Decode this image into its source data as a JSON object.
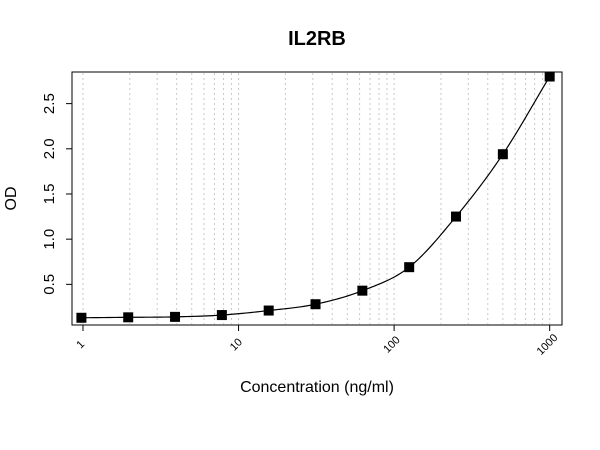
{
  "chart_data": {
    "type": "scatter",
    "title": "IL2RB",
    "xlabel": "Concentration (ng/ml)",
    "ylabel": "OD",
    "x_scale": "log",
    "xlim": [
      0.85,
      1200
    ],
    "ylim": [
      0.05,
      2.85
    ],
    "x_tick_labels": [
      {
        "value": 1,
        "label": "1"
      },
      {
        "value": 10,
        "label": "10"
      },
      {
        "value": 100,
        "label": "100"
      },
      {
        "value": 1000,
        "label": "1000"
      }
    ],
    "y_tick_labels": [
      {
        "value": 0.5,
        "label": "0.5"
      },
      {
        "value": 1.0,
        "label": "1.0"
      },
      {
        "value": 1.5,
        "label": "1.5"
      },
      {
        "value": 2.0,
        "label": "2.0"
      },
      {
        "value": 2.5,
        "label": "2.5"
      }
    ],
    "grid": "vertical-log-dotted",
    "series": [
      {
        "points": [
          {
            "x": 0.977,
            "y": 0.13
          },
          {
            "x": 1.953,
            "y": 0.135
          },
          {
            "x": 3.906,
            "y": 0.14
          },
          {
            "x": 7.8125,
            "y": 0.16
          },
          {
            "x": 15.625,
            "y": 0.21
          },
          {
            "x": 31.25,
            "y": 0.28
          },
          {
            "x": 62.5,
            "y": 0.43
          },
          {
            "x": 125,
            "y": 0.69
          },
          {
            "x": 250,
            "y": 1.25
          },
          {
            "x": 500,
            "y": 1.94
          },
          {
            "x": 1000,
            "y": 2.8
          }
        ]
      }
    ],
    "colors": {
      "points": "#000000",
      "curve": "#000000",
      "grid": "#c8c8c8"
    }
  }
}
